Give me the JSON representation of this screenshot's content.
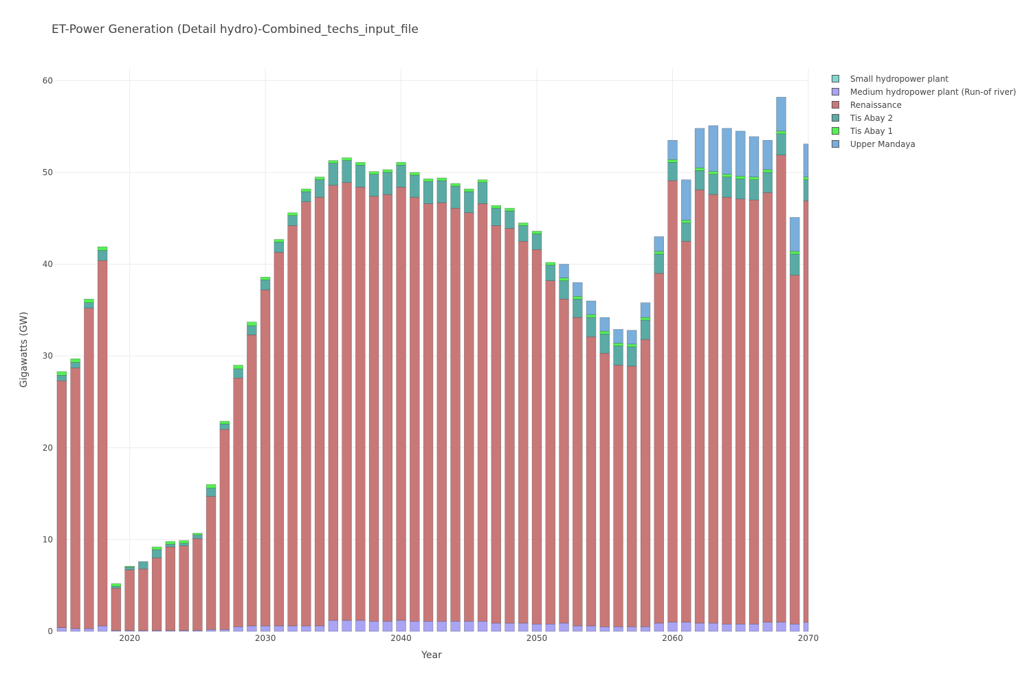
{
  "chart_data": {
    "type": "bar",
    "stacked": true,
    "title": "ET-Power Generation (Detail hydro)-Combined_techs_input_file",
    "xlabel": "Year",
    "ylabel": "Gigawatts (GW)",
    "xlim": [
      2014.5,
      2070
    ],
    "ylim": [
      0,
      61.3
    ],
    "x_ticks": [
      2020,
      2030,
      2040,
      2050,
      2060,
      2070
    ],
    "y_ticks": [
      0,
      10,
      20,
      30,
      40,
      50,
      60
    ],
    "grid": true,
    "legend_position": "top-right",
    "x": [
      2015,
      2016,
      2017,
      2018,
      2019,
      2020,
      2021,
      2022,
      2023,
      2024,
      2025,
      2026,
      2027,
      2028,
      2029,
      2030,
      2031,
      2032,
      2033,
      2034,
      2035,
      2036,
      2037,
      2038,
      2039,
      2040,
      2041,
      2042,
      2043,
      2044,
      2045,
      2046,
      2047,
      2048,
      2049,
      2050,
      2051,
      2052,
      2053,
      2054,
      2055,
      2056,
      2057,
      2058,
      2059,
      2060,
      2061,
      2062,
      2063,
      2064,
      2065,
      2066,
      2067,
      2068,
      2069,
      2070
    ],
    "series": [
      {
        "name": "Small hydropower plant",
        "color": "#7fd8d0",
        "values": [
          0,
          0,
          0,
          0,
          0,
          0,
          0,
          0,
          0,
          0,
          0,
          0,
          0,
          0,
          0,
          0,
          0,
          0,
          0,
          0,
          0,
          0,
          0,
          0,
          0,
          0,
          0,
          0,
          0,
          0,
          0,
          0,
          0,
          0,
          0,
          0,
          0,
          0,
          0,
          0,
          0,
          0,
          0,
          0,
          0,
          0,
          0,
          0,
          0,
          0,
          0,
          0,
          0,
          0,
          0,
          0
        ]
      },
      {
        "name": "Medium hydropower plant (Run-of river)",
        "color": "#aaa4f5",
        "values": [
          0.4,
          0.3,
          0.3,
          0.6,
          0.1,
          0.1,
          0.1,
          0.1,
          0.1,
          0.1,
          0.1,
          0.2,
          0.2,
          0.5,
          0.6,
          0.6,
          0.6,
          0.6,
          0.6,
          0.6,
          1.2,
          1.2,
          1.2,
          1.1,
          1.1,
          1.2,
          1.1,
          1.1,
          1.1,
          1.1,
          1.1,
          1.1,
          0.9,
          0.9,
          0.9,
          0.8,
          0.8,
          0.9,
          0.6,
          0.6,
          0.5,
          0.5,
          0.5,
          0.5,
          0.9,
          1.0,
          1.0,
          0.9,
          0.9,
          0.8,
          0.8,
          0.8,
          1.0,
          1.0,
          0.8,
          1.0
        ]
      },
      {
        "name": "Renaissance",
        "color": "#c97878",
        "values": [
          26.9,
          28.4,
          34.9,
          39.8,
          4.6,
          6.6,
          6.7,
          7.9,
          9.1,
          9.2,
          10.0,
          14.5,
          21.8,
          27.1,
          31.7,
          36.6,
          40.7,
          43.6,
          46.2,
          46.7,
          47.4,
          47.7,
          47.2,
          46.3,
          46.5,
          47.2,
          46.2,
          45.5,
          45.6,
          45.0,
          44.5,
          45.5,
          43.3,
          43.0,
          41.6,
          40.8,
          37.4,
          35.3,
          33.6,
          31.5,
          29.8,
          28.5,
          28.4,
          31.3,
          38.1,
          48.1,
          41.5,
          47.2,
          46.7,
          46.5,
          46.3,
          46.2,
          46.8,
          50.9,
          38.0,
          45.9
        ]
      },
      {
        "name": "Tis Abay 2",
        "color": "#5aaba5",
        "values": [
          0.6,
          0.6,
          0.6,
          1.1,
          0.2,
          0.3,
          0.8,
          0.9,
          0.3,
          0.3,
          0.4,
          0.9,
          0.6,
          1.0,
          1.0,
          1.1,
          1.1,
          1.1,
          1.1,
          1.9,
          2.4,
          2.4,
          2.4,
          2.4,
          2.4,
          2.4,
          2.4,
          2.4,
          2.4,
          2.4,
          2.3,
          2.3,
          1.9,
          1.9,
          1.7,
          1.7,
          1.7,
          2.0,
          2.0,
          2.1,
          2.1,
          2.1,
          2.1,
          2.1,
          2.1,
          2.0,
          2.0,
          2.1,
          2.2,
          2.2,
          2.2,
          2.2,
          2.2,
          2.3,
          2.3,
          2.3
        ]
      },
      {
        "name": "Tis Abay 1",
        "color": "#55f055",
        "values": [
          0.4,
          0.4,
          0.4,
          0.4,
          0.3,
          0.1,
          0,
          0.3,
          0.3,
          0.3,
          0.2,
          0.4,
          0.3,
          0.4,
          0.4,
          0.3,
          0.3,
          0.3,
          0.3,
          0.3,
          0.3,
          0.3,
          0.3,
          0.3,
          0.3,
          0.3,
          0.3,
          0.3,
          0.3,
          0.3,
          0.3,
          0.3,
          0.3,
          0.3,
          0.3,
          0.3,
          0.3,
          0.3,
          0.3,
          0.3,
          0.3,
          0.3,
          0.3,
          0.3,
          0.3,
          0.3,
          0.3,
          0.3,
          0.3,
          0.3,
          0.3,
          0.3,
          0.3,
          0.3,
          0.3,
          0.3
        ]
      },
      {
        "name": "Upper Mandaya",
        "color": "#7aaedb",
        "values": [
          0,
          0,
          0,
          0,
          0,
          0,
          0,
          0,
          0,
          0,
          0,
          0,
          0,
          0,
          0,
          0,
          0,
          0,
          0,
          0,
          0,
          0,
          0,
          0,
          0,
          0,
          0,
          0,
          0,
          0,
          0,
          0,
          0,
          0,
          0,
          0,
          0,
          1.5,
          1.5,
          1.5,
          1.5,
          1.5,
          1.5,
          1.6,
          1.6,
          2.1,
          4.4,
          4.3,
          5.0,
          5.0,
          4.9,
          4.4,
          3.2,
          3.7,
          3.7,
          3.6
        ]
      }
    ]
  }
}
